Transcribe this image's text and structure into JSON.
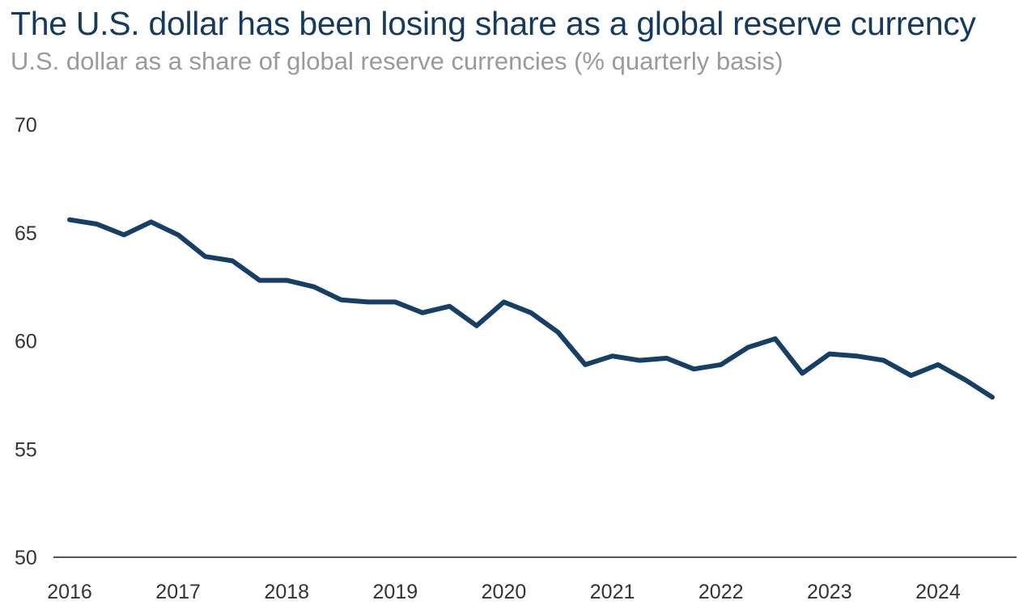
{
  "title": "The U.S. dollar has been losing share as a global reserve currency",
  "subtitle": "U.S. dollar as a share of global reserve currencies (% quarterly basis)",
  "colors": {
    "line": "#163f66",
    "axis": "#1a1a1a",
    "title": "#163a5f",
    "subtitle": "#9a9a9a",
    "tick_text": "#333333"
  },
  "chart_data": {
    "type": "line",
    "title": "The U.S. dollar has been losing share as a global reserve currency",
    "subtitle": "U.S. dollar as a share of global reserve currencies (% quarterly basis)",
    "xlabel": "",
    "ylabel": "",
    "ylim": [
      50,
      70
    ],
    "yticks": [
      70,
      65,
      60,
      55,
      50
    ],
    "xticks": [
      "2016",
      "2017",
      "2018",
      "2019",
      "2020",
      "2021",
      "2022",
      "2023",
      "2024"
    ],
    "grid": false,
    "legend": "none",
    "x": [
      "2016 Q1",
      "2016 Q2",
      "2016 Q3",
      "2016 Q4",
      "2017 Q1",
      "2017 Q2",
      "2017 Q3",
      "2017 Q4",
      "2018 Q1",
      "2018 Q2",
      "2018 Q3",
      "2018 Q4",
      "2019 Q1",
      "2019 Q2",
      "2019 Q3",
      "2019 Q4",
      "2020 Q1",
      "2020 Q2",
      "2020 Q3",
      "2020 Q4",
      "2021 Q1",
      "2021 Q2",
      "2021 Q3",
      "2021 Q4",
      "2022 Q1",
      "2022 Q2",
      "2022 Q3",
      "2022 Q4",
      "2023 Q1",
      "2023 Q2",
      "2023 Q3",
      "2023 Q4",
      "2024 Q1",
      "2024 Q2",
      "2024 Q3"
    ],
    "series": [
      {
        "values": [
          65.6,
          65.4,
          64.9,
          65.5,
          64.9,
          63.9,
          63.7,
          62.8,
          62.8,
          62.5,
          61.9,
          61.8,
          61.8,
          61.3,
          61.6,
          60.7,
          61.8,
          61.3,
          60.4,
          58.9,
          59.3,
          59.1,
          59.2,
          58.7,
          58.9,
          59.7,
          60.1,
          58.5,
          59.4,
          59.3,
          59.1,
          58.4,
          58.9,
          58.2,
          57.4
        ]
      }
    ]
  }
}
